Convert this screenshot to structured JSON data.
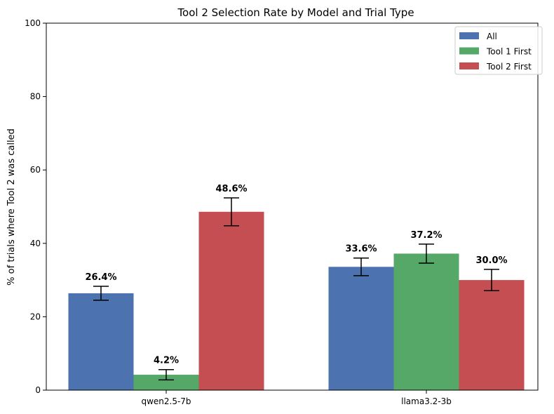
{
  "chart_data": {
    "type": "bar",
    "title": "Tool 2 Selection Rate by Model and Trial Type",
    "xlabel": "",
    "ylabel": "% of trials where Tool 2 was called",
    "ylim": [
      0,
      100
    ],
    "yticks": [
      0,
      20,
      40,
      60,
      80,
      100
    ],
    "categories": [
      "qwen2.5-7b",
      "llama3.2-3b"
    ],
    "series": [
      {
        "name": "All",
        "color": "#4c72b0",
        "values": [
          26.4,
          33.6
        ],
        "errors": [
          1.9,
          2.4
        ],
        "labels": [
          "26.4%",
          "33.6%"
        ]
      },
      {
        "name": "Tool 1 First",
        "color": "#55a868",
        "values": [
          4.2,
          37.2
        ],
        "errors": [
          1.4,
          2.6
        ],
        "labels": [
          "4.2%",
          "37.2%"
        ]
      },
      {
        "name": "Tool 2 First",
        "color": "#c44e52",
        "values": [
          48.6,
          30.0
        ],
        "errors": [
          3.8,
          2.9
        ],
        "labels": [
          "48.6%",
          "30.0%"
        ]
      }
    ],
    "grid": false,
    "legend_position": "top-right"
  }
}
